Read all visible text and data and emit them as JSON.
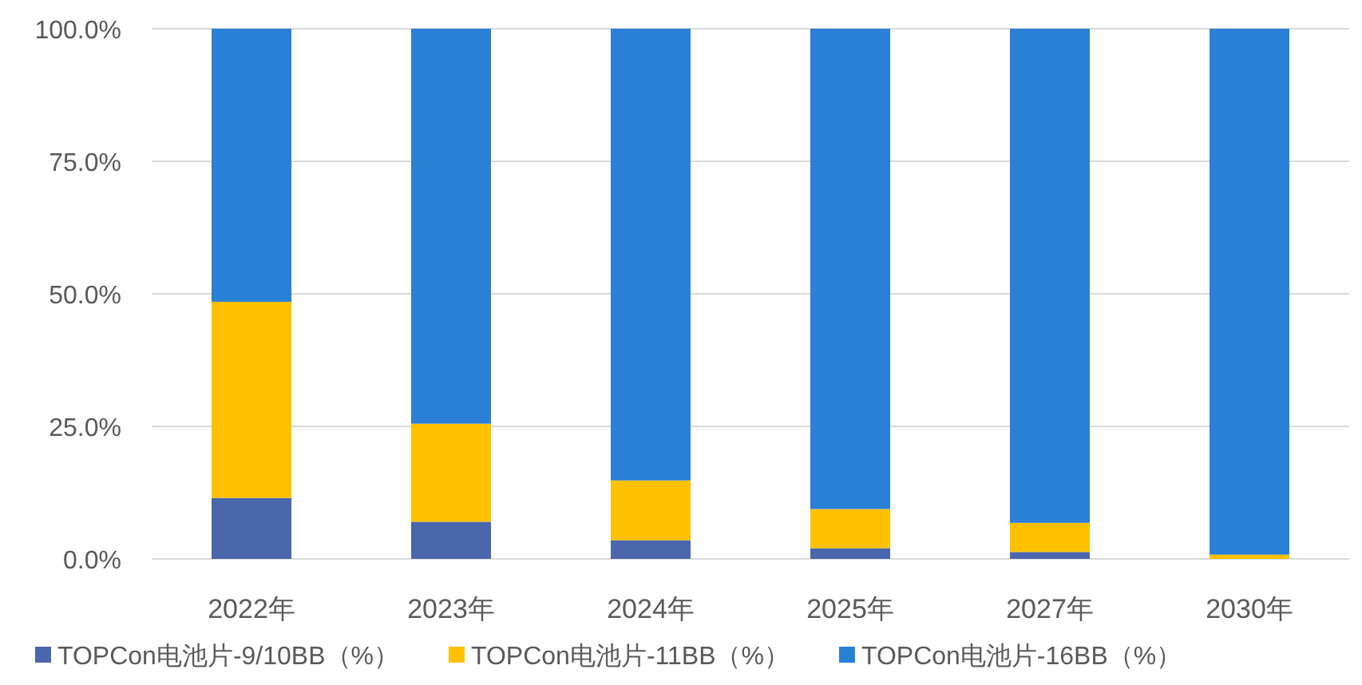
{
  "chart_data": {
    "type": "bar",
    "stacked": true,
    "categories": [
      "2022年",
      "2023年",
      "2024年",
      "2025年",
      "2027年",
      "2030年"
    ],
    "series": [
      {
        "name": "TOPCon电池片-9/10BB（%）",
        "color": "#4a66ac",
        "values": [
          11.5,
          7,
          3.5,
          2,
          1.3,
          0
        ]
      },
      {
        "name": "TOPCon电池片-11BB（%）",
        "color": "#ffc000",
        "values": [
          37,
          18.5,
          11.3,
          7.4,
          5.5,
          0.8
        ]
      },
      {
        "name": "TOPCon电池片-16BB（%）",
        "color": "#2a7fd6",
        "values": [
          51.5,
          74.5,
          85.2,
          90.6,
          93.2,
          99.2
        ]
      }
    ],
    "ylim": [
      0,
      100
    ],
    "yticks": [
      {
        "value": 0,
        "label": "0.0%"
      },
      {
        "value": 25,
        "label": "25.0%"
      },
      {
        "value": 50,
        "label": "50.0%"
      },
      {
        "value": 75,
        "label": "75.0%"
      },
      {
        "value": 100,
        "label": "100.0%"
      }
    ],
    "grid": "y",
    "legend": "bottom"
  }
}
